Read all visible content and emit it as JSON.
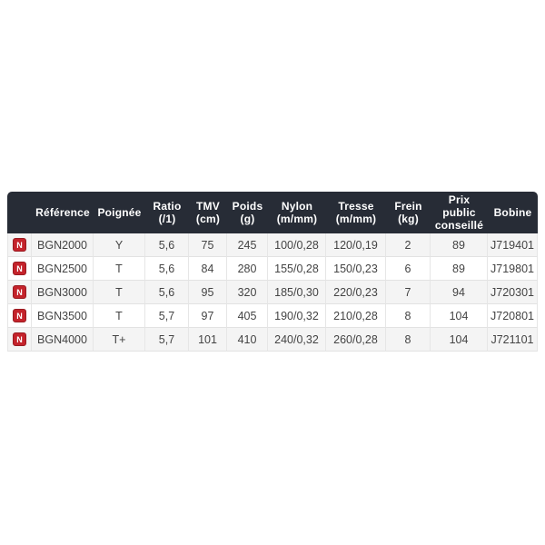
{
  "table": {
    "header_bg": "#272c36",
    "header_text_color": "#ffffff",
    "row_alt_bg": "#f4f4f4",
    "border_color": "#e2e2e2",
    "new_badge": {
      "label": "N",
      "bg": "#c4232b",
      "border": "#991b21"
    },
    "columns": [
      {
        "id": "new",
        "label": "",
        "width": 27
      },
      {
        "id": "reference",
        "label": "Référence",
        "width": 68
      },
      {
        "id": "poignee",
        "label": "Poignée",
        "width": 57
      },
      {
        "id": "ratio",
        "label": "Ratio\n(/1)",
        "width": 48
      },
      {
        "id": "tmv",
        "label": "TMV\n(cm)",
        "width": 42
      },
      {
        "id": "poids",
        "label": "Poids\n(g)",
        "width": 45
      },
      {
        "id": "nylon",
        "label": "Nylon\n(m/mm)",
        "width": 64
      },
      {
        "id": "tresse",
        "label": "Tresse\n(m/mm)",
        "width": 66
      },
      {
        "id": "frein",
        "label": "Frein\n(kg)",
        "width": 49
      },
      {
        "id": "prix",
        "label": "Prix\npublic\nconseillé",
        "width": 63
      },
      {
        "id": "bobine",
        "label": "Bobine",
        "width": 55
      }
    ],
    "rows": [
      {
        "new": "N",
        "reference": "BGN2000",
        "poignee": "Y",
        "ratio": "5,6",
        "tmv": "75",
        "poids": "245",
        "nylon": "100/0,28",
        "tresse": "120/0,19",
        "frein": "2",
        "prix": "89",
        "bobine": "J719401"
      },
      {
        "new": "N",
        "reference": "BGN2500",
        "poignee": "T",
        "ratio": "5,6",
        "tmv": "84",
        "poids": "280",
        "nylon": "155/0,28",
        "tresse": "150/0,23",
        "frein": "6",
        "prix": "89",
        "bobine": "J719801"
      },
      {
        "new": "N",
        "reference": "BGN3000",
        "poignee": "T",
        "ratio": "5,6",
        "tmv": "95",
        "poids": "320",
        "nylon": "185/0,30",
        "tresse": "220/0,23",
        "frein": "7",
        "prix": "94",
        "bobine": "J720301"
      },
      {
        "new": "N",
        "reference": "BGN3500",
        "poignee": "T",
        "ratio": "5,7",
        "tmv": "97",
        "poids": "405",
        "nylon": "190/0,32",
        "tresse": "210/0,28",
        "frein": "8",
        "prix": "104",
        "bobine": "J720801"
      },
      {
        "new": "N",
        "reference": "BGN4000",
        "poignee": "T+",
        "ratio": "5,7",
        "tmv": "101",
        "poids": "410",
        "nylon": "240/0,32",
        "tresse": "260/0,28",
        "frein": "8",
        "prix": "104",
        "bobine": "J721101"
      }
    ]
  }
}
